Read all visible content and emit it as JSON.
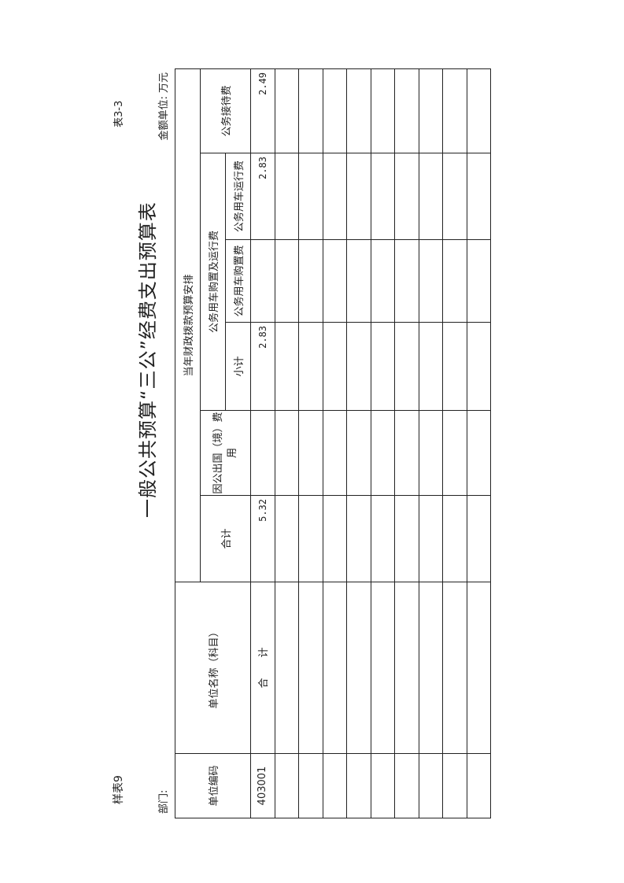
{
  "sample_label": "样表9",
  "table_no": "表3-3",
  "title": "一般公共预算“三公”经费支出预算表",
  "dept_label": "部门:",
  "unit_label": "金额单位: 万元",
  "headers": {
    "code": "单位编码",
    "name": "单位名称（科目）",
    "group": "当年财政拨款预算安排",
    "total": "合计",
    "abroad": "因公出国（境）费用",
    "vehicle": "公务用车购置及运行费",
    "subtotal": "小计",
    "purchase": "公务用车购置费",
    "operation": "公务用车运行费",
    "reception": "公务接待费"
  },
  "rows": [
    {
      "code": "403001",
      "name": "合　　计",
      "total": "5.32",
      "abroad": "",
      "subtotal": "2.83",
      "purchase": "",
      "operation": "2.83",
      "reception": "2.49"
    }
  ],
  "empty_rows": 9
}
